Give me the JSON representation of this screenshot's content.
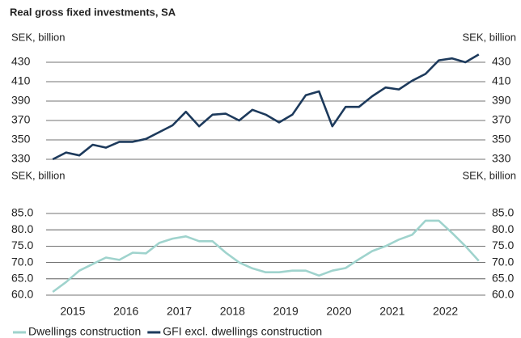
{
  "title": "Real gross fixed investments, SA",
  "chart_data": [
    {
      "type": "line",
      "y_label": "SEK, billion",
      "xlim": [
        2015,
        2023.25
      ],
      "x": [
        2015.125,
        2015.375,
        2015.625,
        2015.875,
        2016.125,
        2016.375,
        2016.625,
        2016.875,
        2017.125,
        2017.375,
        2017.625,
        2017.875,
        2018.125,
        2018.375,
        2018.625,
        2018.875,
        2019.125,
        2019.375,
        2019.625,
        2019.875,
        2020.125,
        2020.375,
        2020.625,
        2020.875,
        2021.125,
        2021.375,
        2021.625,
        2021.875,
        2022.125,
        2022.375,
        2022.625,
        2022.875,
        2023.125
      ],
      "ylim": [
        330,
        430
      ],
      "yticks": [
        330,
        350,
        370,
        390,
        410,
        430
      ],
      "grid": true,
      "series": [
        {
          "name": "GFI excl. dwellings construction",
          "color": "#1d3a5c",
          "values": [
            330,
            337,
            334,
            345,
            342,
            348,
            348,
            351,
            358,
            365,
            379,
            364,
            376,
            377,
            370,
            381,
            376,
            368,
            376,
            396,
            400,
            364,
            384,
            384,
            395,
            404,
            402,
            411,
            418,
            432,
            434,
            430,
            438
          ]
        }
      ]
    },
    {
      "type": "line",
      "y_label": "SEK, billion",
      "xlim": [
        2015,
        2023.25
      ],
      "xticks": [
        {
          "value": 2015.5,
          "label": "2015"
        },
        {
          "value": 2016.5,
          "label": "2016"
        },
        {
          "value": 2017.5,
          "label": "2017"
        },
        {
          "value": 2018.5,
          "label": "2018"
        },
        {
          "value": 2019.5,
          "label": "2019"
        },
        {
          "value": 2020.5,
          "label": "2020"
        },
        {
          "value": 2021.5,
          "label": "2021"
        },
        {
          "value": 2022.5,
          "label": "2022"
        }
      ],
      "x": [
        2015.125,
        2015.375,
        2015.625,
        2015.875,
        2016.125,
        2016.375,
        2016.625,
        2016.875,
        2017.125,
        2017.375,
        2017.625,
        2017.875,
        2018.125,
        2018.375,
        2018.625,
        2018.875,
        2019.125,
        2019.375,
        2019.625,
        2019.875,
        2020.125,
        2020.375,
        2020.625,
        2020.875,
        2021.125,
        2021.375,
        2021.625,
        2021.875,
        2022.125,
        2022.375,
        2022.625,
        2022.875,
        2023.125
      ],
      "ylim": [
        60,
        85
      ],
      "yticks": [
        {
          "value": 60,
          "label": "60.0"
        },
        {
          "value": 65,
          "label": "65.0"
        },
        {
          "value": 70,
          "label": "70.0"
        },
        {
          "value": 75,
          "label": "75.0"
        },
        {
          "value": 80,
          "label": "80.0"
        },
        {
          "value": 85,
          "label": "85.0"
        }
      ],
      "grid": true,
      "series": [
        {
          "name": "Dwellings construction",
          "color": "#9fd3cd",
          "values": [
            61,
            64,
            67.5,
            69.5,
            71.5,
            70.8,
            73,
            72.8,
            76,
            77.3,
            78,
            76.5,
            76.5,
            73,
            70,
            68.2,
            67,
            67,
            67.5,
            67.5,
            66,
            67.5,
            68.3,
            71,
            73.5,
            75,
            77,
            78.5,
            82.8,
            82.8,
            79,
            75,
            70.5
          ]
        }
      ]
    }
  ]
}
